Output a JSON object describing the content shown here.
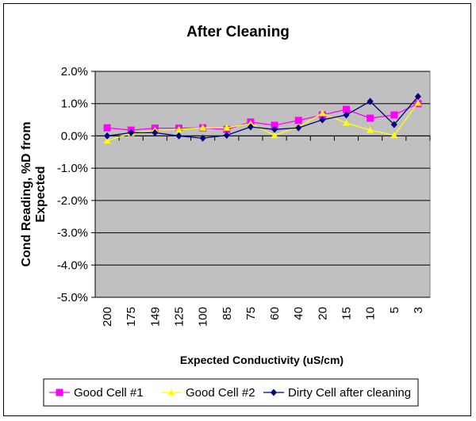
{
  "chart_data": {
    "type": "line",
    "title": "After Cleaning",
    "xlabel": "Expected Conductivity (uS/cm)",
    "ylabel_line1": "Cond Reading, %D from",
    "ylabel_line2": "Expected",
    "categories": [
      "200",
      "175",
      "149",
      "125",
      "100",
      "85",
      "75",
      "60",
      "40",
      "20",
      "15",
      "10",
      "5",
      "3"
    ],
    "ylim": [
      -5.0,
      2.0
    ],
    "yticks": [
      2.0,
      1.0,
      0.0,
      -1.0,
      -2.0,
      -3.0,
      -4.0,
      -5.0
    ],
    "ytick_labels": [
      "2.0%",
      "1.0%",
      "0.0%",
      "-1.0%",
      "-2.0%",
      "-3.0%",
      "-4.0%",
      "-5.0%"
    ],
    "grid": true,
    "legend_position": "bottom",
    "plot_background": "#c0c0c0",
    "series": [
      {
        "name": "Good Cell #1",
        "color": "#ff00ff",
        "marker": "square",
        "values": [
          0.25,
          0.18,
          0.24,
          0.24,
          0.25,
          0.2,
          0.43,
          0.33,
          0.48,
          0.65,
          0.82,
          0.55,
          0.65,
          1.0
        ]
      },
      {
        "name": "Good Cell #2",
        "color": "#ffff00",
        "marker": "triangle",
        "values": [
          -0.15,
          0.08,
          0.18,
          0.2,
          0.25,
          0.25,
          0.38,
          0.02,
          0.28,
          0.7,
          0.4,
          0.18,
          0.02,
          1.02
        ]
      },
      {
        "name": "Dirty Cell after cleaning",
        "color": "#000080",
        "marker": "diamond",
        "values": [
          0.0,
          0.1,
          0.1,
          0.0,
          -0.07,
          0.02,
          0.28,
          0.2,
          0.25,
          0.5,
          0.65,
          1.07,
          0.35,
          1.22
        ]
      }
    ]
  }
}
